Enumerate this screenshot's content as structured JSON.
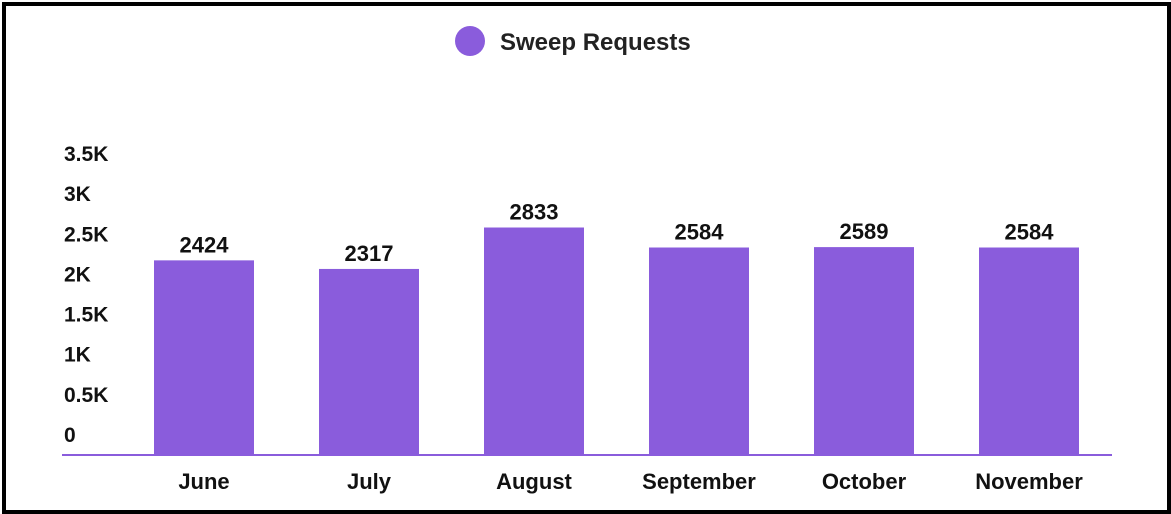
{
  "chart_data": {
    "type": "bar",
    "legend": [
      {
        "name": "Sweep Requests",
        "color": "#8a5cdc"
      }
    ],
    "legend_position": "top-center",
    "categories": [
      "June",
      "July",
      "August",
      "September",
      "October",
      "November"
    ],
    "series": [
      {
        "name": "Sweep Requests",
        "color": "#8a5cdc",
        "values": [
          2424,
          2317,
          2833,
          2584,
          2589,
          2584
        ]
      }
    ],
    "data_labels": [
      "2424",
      "2317",
      "2833",
      "2584",
      "2589",
      "2584"
    ],
    "y_ticks": [
      0,
      500,
      1000,
      1500,
      2000,
      2500,
      3000,
      3500
    ],
    "y_tick_labels": [
      "0",
      "0.5K",
      "1K",
      "1.5K",
      "2K",
      "2.5K",
      "3K",
      "3.5K"
    ],
    "ylim": [
      0,
      3500
    ],
    "grid": false,
    "axis_color": "#8a5cdc"
  }
}
